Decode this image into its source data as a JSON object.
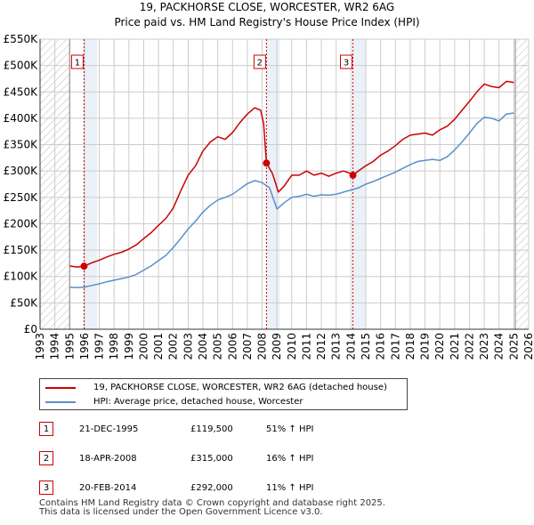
{
  "title_line1": "19, PACKHORSE CLOSE, WORCESTER, WR2 6AG",
  "title_line2": "Price paid vs. HM Land Registry's House Price Index (HPI)",
  "legend": {
    "property_label": "19, PACKHORSE CLOSE, WORCESTER, WR2 6AG (detached house)",
    "hpi_label": "HPI: Average price, detached house, Worcester"
  },
  "transactions": [
    {
      "num": "1",
      "date": "21-DEC-1995",
      "price": "£119,500",
      "hpi": "51% ↑ HPI"
    },
    {
      "num": "2",
      "date": "18-APR-2008",
      "price": "£315,000",
      "hpi": "16% ↑ HPI"
    },
    {
      "num": "3",
      "date": "20-FEB-2014",
      "price": "£292,000",
      "hpi": "11% ↑ HPI"
    }
  ],
  "footer": {
    "line1": "Contains HM Land Registry data © Crown copyright and database right 2025.",
    "line2": "This data is licensed under the Open Government Licence v3.0."
  },
  "colors": {
    "property": "#cc0000",
    "hpi": "#5b8fc9",
    "grid": "#cccccc",
    "hatch": "#bbbbbb",
    "shade": "#dde8f5"
  },
  "chart_data": {
    "type": "line",
    "title": "19, PACKHORSE CLOSE, WORCESTER, WR2 6AG — Price paid vs. HM Land Registry's House Price Index (HPI)",
    "xlabel": "",
    "ylabel": "",
    "xlim": [
      1993,
      2026
    ],
    "ylim": [
      0,
      550000
    ],
    "x_ticks": [
      1993,
      1994,
      1995,
      1996,
      1997,
      1998,
      1999,
      2000,
      2001,
      2002,
      2003,
      2004,
      2005,
      2006,
      2007,
      2008,
      2009,
      2010,
      2011,
      2012,
      2013,
      2014,
      2015,
      2016,
      2017,
      2018,
      2019,
      2020,
      2021,
      2022,
      2023,
      2024,
      2025,
      2026
    ],
    "y_ticks": [
      0,
      50000,
      100000,
      150000,
      200000,
      250000,
      300000,
      350000,
      400000,
      450000,
      500000,
      550000
    ],
    "y_tick_labels": [
      "£0",
      "£50K",
      "£100K",
      "£150K",
      "£200K",
      "£250K",
      "£300K",
      "£350K",
      "£400K",
      "£450K",
      "£500K",
      "£550K"
    ],
    "data_start": 1995.0,
    "data_end": 2025.1,
    "series": [
      {
        "name": "19, PACKHORSE CLOSE, WORCESTER, WR2 6AG (detached house)",
        "color": "#cc0000",
        "x": [
          1995.0,
          1995.5,
          1995.97,
          1996.5,
          1997.0,
          1997.5,
          1998.0,
          1998.5,
          1999.0,
          1999.5,
          2000.0,
          2000.5,
          2001.0,
          2001.5,
          2002.0,
          2002.5,
          2003.0,
          2003.5,
          2004.0,
          2004.5,
          2005.0,
          2005.5,
          2006.0,
          2006.5,
          2007.0,
          2007.5,
          2007.9,
          2008.1,
          2008.29,
          2008.7,
          2009.1,
          2009.5,
          2010.0,
          2010.5,
          2011.0,
          2011.5,
          2012.0,
          2012.5,
          2013.0,
          2013.5,
          2014.0,
          2014.13,
          2014.6,
          2015.0,
          2015.5,
          2016.0,
          2016.5,
          2017.0,
          2017.5,
          2018.0,
          2018.5,
          2019.0,
          2019.5,
          2020.0,
          2020.5,
          2021.0,
          2021.5,
          2022.0,
          2022.5,
          2023.0,
          2023.5,
          2024.0,
          2024.5,
          2025.0
        ],
        "y": [
          120000,
          118000,
          119500,
          126000,
          131000,
          137000,
          142000,
          146000,
          152000,
          160000,
          172000,
          183000,
          197000,
          210000,
          230000,
          262000,
          292000,
          310000,
          338000,
          355000,
          365000,
          360000,
          373000,
          392000,
          408000,
          420000,
          415000,
          390000,
          315000,
          295000,
          260000,
          272000,
          292000,
          292000,
          300000,
          292000,
          296000,
          290000,
          296000,
          300000,
          295000,
          292000,
          302000,
          310000,
          318000,
          330000,
          338000,
          348000,
          360000,
          368000,
          370000,
          372000,
          368000,
          378000,
          385000,
          398000,
          415000,
          432000,
          450000,
          465000,
          460000,
          458000,
          470000,
          468000
        ]
      },
      {
        "name": "HPI: Average price, detached house, Worcester",
        "color": "#5b8fc9",
        "x": [
          1995.0,
          1995.5,
          1996.0,
          1996.5,
          1997.0,
          1997.5,
          1998.0,
          1998.5,
          1999.0,
          1999.5,
          2000.0,
          2000.5,
          2001.0,
          2001.5,
          2002.0,
          2002.5,
          2003.0,
          2003.5,
          2004.0,
          2004.5,
          2005.0,
          2005.5,
          2006.0,
          2006.5,
          2007.0,
          2007.5,
          2008.0,
          2008.5,
          2009.0,
          2009.5,
          2010.0,
          2010.5,
          2011.0,
          2011.5,
          2012.0,
          2012.5,
          2013.0,
          2013.5,
          2014.0,
          2014.5,
          2015.0,
          2015.5,
          2016.0,
          2016.5,
          2017.0,
          2017.5,
          2018.0,
          2018.5,
          2019.0,
          2019.5,
          2020.0,
          2020.5,
          2021.0,
          2021.5,
          2022.0,
          2022.5,
          2023.0,
          2023.5,
          2024.0,
          2024.5,
          2025.0
        ],
        "y": [
          80000,
          79000,
          80000,
          83000,
          86000,
          90000,
          93000,
          96000,
          99000,
          104000,
          112000,
          120000,
          130000,
          140000,
          155000,
          172000,
          190000,
          205000,
          222000,
          235000,
          245000,
          250000,
          256000,
          266000,
          276000,
          282000,
          278000,
          268000,
          228000,
          240000,
          250000,
          252000,
          256000,
          252000,
          255000,
          254000,
          256000,
          260000,
          264000,
          268000,
          275000,
          280000,
          286000,
          292000,
          298000,
          305000,
          312000,
          318000,
          320000,
          322000,
          320000,
          327000,
          340000,
          355000,
          372000,
          390000,
          402000,
          400000,
          395000,
          408000,
          410000
        ]
      }
    ],
    "sales": [
      {
        "label": "1",
        "x": 1995.97,
        "price": 119500
      },
      {
        "label": "2",
        "x": 2008.29,
        "price": 315000
      },
      {
        "label": "3",
        "x": 2014.13,
        "price": 292000
      }
    ]
  }
}
